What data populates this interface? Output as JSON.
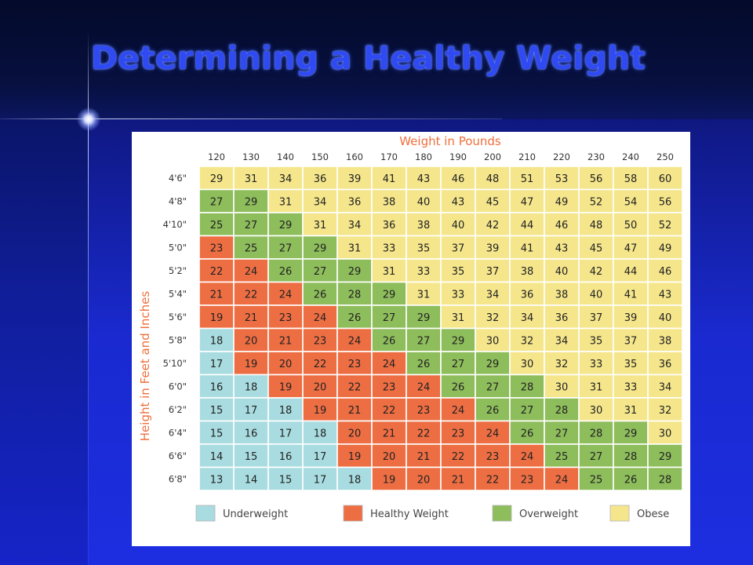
{
  "slide": {
    "title": "Determining a Healthy Weight"
  },
  "chart_data": {
    "type": "heatmap",
    "xlabel": "Weight in Pounds",
    "ylabel": "Height in Feet and Inches",
    "x": [
      "120",
      "130",
      "140",
      "150",
      "160",
      "170",
      "180",
      "190",
      "200",
      "210",
      "220",
      "230",
      "240",
      "250"
    ],
    "y": [
      "4'6\"",
      "4'8\"",
      "4'10\"",
      "5'0\"",
      "5'2\"",
      "5'4\"",
      "5'6\"",
      "5'8\"",
      "5'10\"",
      "6'0\"",
      "6'2\"",
      "6'4\"",
      "6'6\"",
      "6'8\""
    ],
    "values": [
      [
        29,
        31,
        34,
        36,
        39,
        41,
        43,
        46,
        48,
        51,
        53,
        56,
        58,
        60
      ],
      [
        27,
        29,
        31,
        34,
        36,
        38,
        40,
        43,
        45,
        47,
        49,
        52,
        54,
        56
      ],
      [
        25,
        27,
        29,
        31,
        34,
        36,
        38,
        40,
        42,
        44,
        46,
        48,
        50,
        52
      ],
      [
        23,
        25,
        27,
        29,
        31,
        33,
        35,
        37,
        39,
        41,
        43,
        45,
        47,
        49
      ],
      [
        22,
        24,
        26,
        27,
        29,
        31,
        33,
        35,
        37,
        38,
        40,
        42,
        44,
        46
      ],
      [
        21,
        22,
        24,
        26,
        28,
        29,
        31,
        33,
        34,
        36,
        38,
        40,
        41,
        43
      ],
      [
        19,
        21,
        23,
        24,
        26,
        27,
        29,
        31,
        32,
        34,
        36,
        37,
        39,
        40
      ],
      [
        18,
        20,
        21,
        23,
        24,
        26,
        27,
        29,
        30,
        32,
        34,
        35,
        37,
        38
      ],
      [
        17,
        19,
        20,
        22,
        23,
        24,
        26,
        27,
        29,
        30,
        32,
        33,
        35,
        36
      ],
      [
        16,
        18,
        19,
        20,
        22,
        23,
        24,
        26,
        27,
        28,
        30,
        31,
        33,
        34
      ],
      [
        15,
        17,
        18,
        19,
        21,
        22,
        23,
        24,
        26,
        27,
        28,
        30,
        31,
        32
      ],
      [
        15,
        16,
        17,
        18,
        20,
        21,
        22,
        23,
        24,
        26,
        27,
        28,
        29,
        30
      ],
      [
        14,
        15,
        16,
        17,
        19,
        20,
        21,
        22,
        23,
        24,
        25,
        27,
        28,
        29
      ],
      [
        13,
        14,
        15,
        17,
        18,
        19,
        20,
        21,
        22,
        23,
        24,
        25,
        26,
        28
      ]
    ],
    "categories": [
      [
        "O",
        "O",
        "O",
        "O",
        "O",
        "O",
        "O",
        "O",
        "O",
        "O",
        "O",
        "O",
        "O",
        "O"
      ],
      [
        "G",
        "G",
        "O",
        "O",
        "O",
        "O",
        "O",
        "O",
        "O",
        "O",
        "O",
        "O",
        "O",
        "O"
      ],
      [
        "G",
        "G",
        "G",
        "O",
        "O",
        "O",
        "O",
        "O",
        "O",
        "O",
        "O",
        "O",
        "O",
        "O"
      ],
      [
        "H",
        "G",
        "G",
        "G",
        "O",
        "O",
        "O",
        "O",
        "O",
        "O",
        "O",
        "O",
        "O",
        "O"
      ],
      [
        "H",
        "H",
        "G",
        "G",
        "G",
        "O",
        "O",
        "O",
        "O",
        "O",
        "O",
        "O",
        "O",
        "O"
      ],
      [
        "H",
        "H",
        "H",
        "G",
        "G",
        "G",
        "O",
        "O",
        "O",
        "O",
        "O",
        "O",
        "O",
        "O"
      ],
      [
        "H",
        "H",
        "H",
        "H",
        "G",
        "G",
        "G",
        "O",
        "O",
        "O",
        "O",
        "O",
        "O",
        "O"
      ],
      [
        "U",
        "H",
        "H",
        "H",
        "H",
        "G",
        "G",
        "G",
        "O",
        "O",
        "O",
        "O",
        "O",
        "O"
      ],
      [
        "U",
        "H",
        "H",
        "H",
        "H",
        "H",
        "G",
        "G",
        "G",
        "O",
        "O",
        "O",
        "O",
        "O"
      ],
      [
        "U",
        "U",
        "H",
        "H",
        "H",
        "H",
        "H",
        "G",
        "G",
        "G",
        "O",
        "O",
        "O",
        "O"
      ],
      [
        "U",
        "U",
        "U",
        "H",
        "H",
        "H",
        "H",
        "H",
        "G",
        "G",
        "G",
        "O",
        "O",
        "O"
      ],
      [
        "U",
        "U",
        "U",
        "U",
        "H",
        "H",
        "H",
        "H",
        "H",
        "G",
        "G",
        "G",
        "G",
        "O"
      ],
      [
        "U",
        "U",
        "U",
        "U",
        "H",
        "H",
        "H",
        "H",
        "H",
        "H",
        "G",
        "G",
        "G",
        "G"
      ],
      [
        "U",
        "U",
        "U",
        "U",
        "U",
        "H",
        "H",
        "H",
        "H",
        "H",
        "H",
        "G",
        "G",
        "G"
      ]
    ],
    "legend": [
      {
        "key": "U",
        "label": "Underweight",
        "color": "#a9dce0"
      },
      {
        "key": "H",
        "label": "Healthy Weight",
        "color": "#ee6e43"
      },
      {
        "key": "G",
        "label": "Overweight",
        "color": "#8ebd5c"
      },
      {
        "key": "O",
        "label": "Obese",
        "color": "#f5e68c"
      }
    ],
    "legend_position": "bottom"
  }
}
